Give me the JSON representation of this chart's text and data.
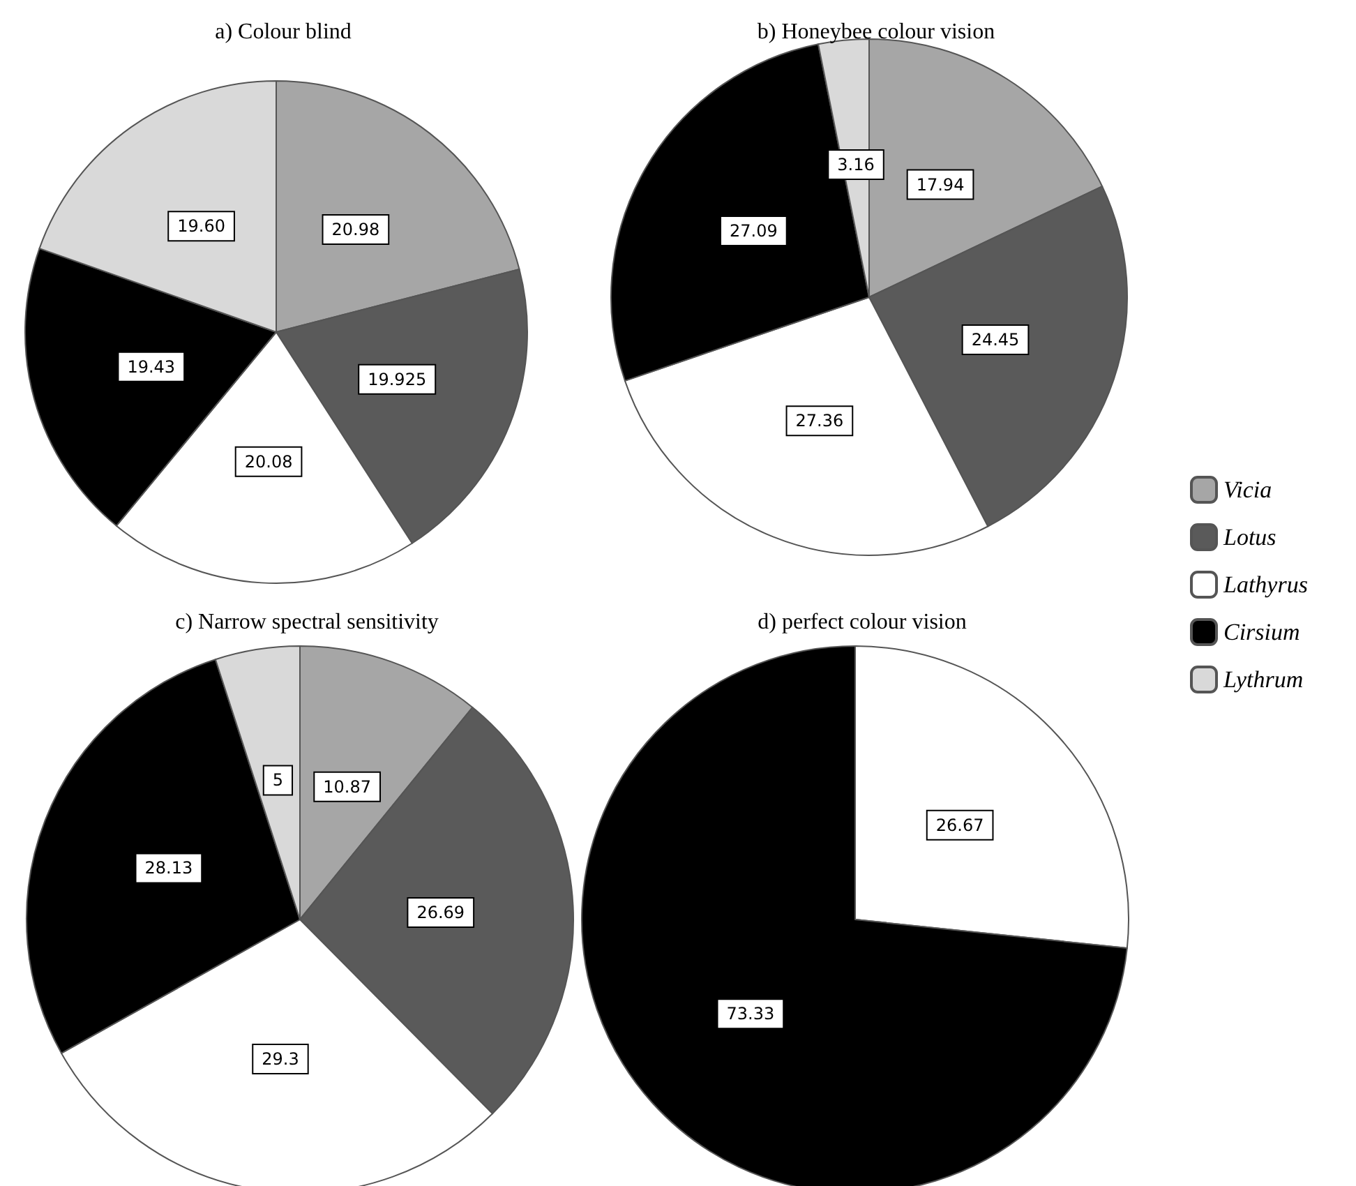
{
  "chart_data": [
    {
      "type": "pie",
      "title": "a) Colour blind",
      "categories": [
        null,
        null,
        null,
        null,
        null
      ],
      "values": [
        20.98,
        19.925,
        20.08,
        19.43,
        19.6
      ],
      "value_labels": [
        "20.98",
        "19.925",
        "20.08",
        "19.43",
        "19.60"
      ],
      "colors": [
        "#a6a6a6",
        "#5a5a5a",
        "#ffffff",
        "#000000",
        "#d9d9d9"
      ],
      "legend": false
    },
    {
      "type": "pie",
      "title": "b) Honeybee colour vision",
      "categories": [
        "Vicia",
        "Lotus",
        "Lathyrus",
        "Cirsium",
        "Lythrum"
      ],
      "values": [
        17.94,
        24.45,
        27.36,
        27.09,
        3.16
      ],
      "data_labels": true,
      "colors": [
        "#a6a6a6",
        "#5a5a5a",
        "#ffffff",
        "#000000",
        "#d9d9d9"
      ],
      "legend": "right"
    },
    {
      "type": "pie",
      "title": "c) Narrow spectral sensitivity",
      "categories": [
        null,
        null,
        null,
        null,
        null
      ],
      "values": [
        10.87,
        26.69,
        29.3,
        28.13,
        5
      ],
      "data_labels": true,
      "colors": [
        "#a6a6a6",
        "#5a5a5a",
        "#ffffff",
        "#000000",
        "#d9d9d9"
      ],
      "legend": false
    },
    {
      "type": "pie",
      "title": "d) perfect colour vision",
      "categories": [
        null,
        null
      ],
      "values": [
        26.67,
        73.33
      ],
      "data_labels": true,
      "colors": [
        "#ffffff",
        "#000000"
      ],
      "legend": false
    }
  ]
}
